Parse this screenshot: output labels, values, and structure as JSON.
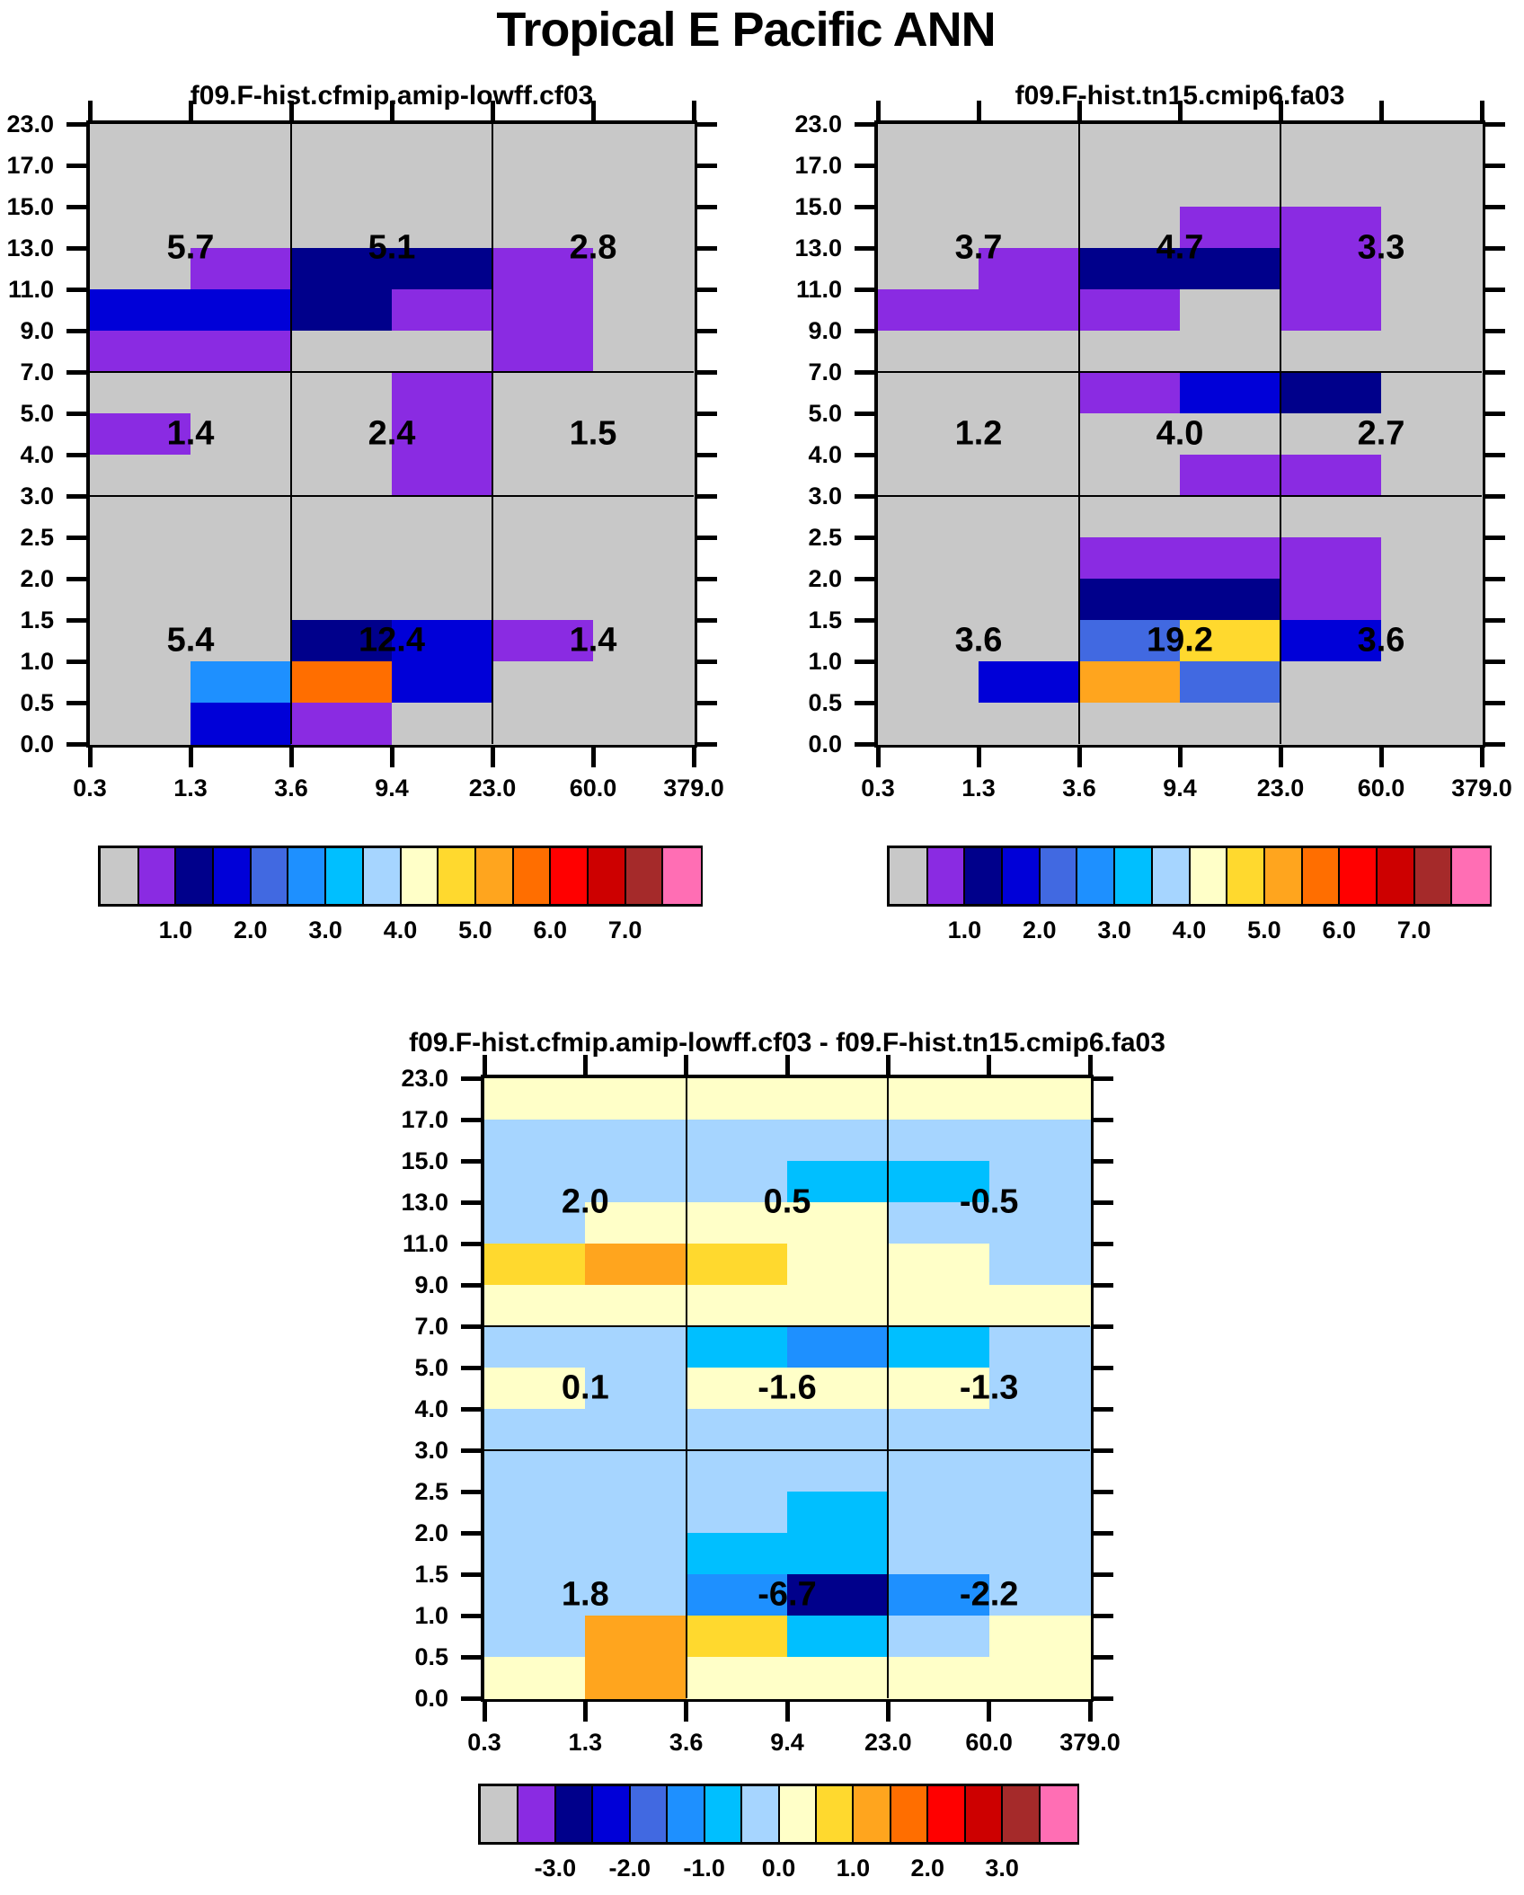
{
  "figure": {
    "title": "Tropical E Pacific ANN",
    "background": "#FFFFFF"
  },
  "palette": {
    "G": "#C8C8C8",
    "P": "#8A2BE2",
    "N": "#00008B",
    "B": "#0000D8",
    "R": "#4169E1",
    "D": "#1E90FF",
    "C": "#00BFFF",
    "L": "#A6D5FF",
    "Y": "#FFFFC8",
    "O": "#FFD92E",
    "A": "#FFA51E",
    "K": "#FF6E00"
  },
  "palette_names": {
    "G": "gray-missing",
    "P": "purple",
    "N": "navy",
    "B": "blue",
    "R": "royal-blue",
    "D": "dodger-blue",
    "C": "deep-sky-blue",
    "L": "light-blue",
    "Y": "pale-yellow",
    "O": "gold",
    "A": "orange",
    "K": "dark-orange"
  },
  "colorbar_colors": [
    "#C8C8C8",
    "#8A2BE2",
    "#00008B",
    "#0000D8",
    "#4169E1",
    "#1E90FF",
    "#00BFFF",
    "#A6D5FF",
    "#FFFFC8",
    "#FFD92E",
    "#FFA51E",
    "#FF6E00",
    "#FF0000",
    "#CD0000",
    "#A52A2A",
    "#FF6EB4"
  ],
  "chart_data": [
    {
      "type": "heatmap",
      "title": "f09.F-hist.cfmip.amip-lowff.cf03",
      "x_tick_labels": [
        "0.3",
        "1.3",
        "3.6",
        "9.4",
        "23.0",
        "60.0",
        "379.0"
      ],
      "y_tick_labels": [
        "23.0",
        "17.0",
        "15.0",
        "13.0",
        "11.0",
        "9.0",
        "7.0",
        "5.0",
        "4.0",
        "3.0",
        "2.5",
        "2.0",
        "1.5",
        "1.0",
        "0.5",
        "0.0"
      ],
      "grid": [
        "GGGGGG",
        "GGGGGG",
        "GGGGGG",
        "GPNNPG",
        "BBNPPG",
        "PPGGPG",
        "GGGPGG",
        "PGGPGG",
        "GGGPGG",
        "GGGGGG",
        "GGGGGG",
        "GGGGGG",
        "GGNBPG",
        "GDKBGG",
        "GBPGGG"
      ],
      "block_means": [
        [
          "5.7",
          "5.1",
          "2.8"
        ],
        [
          "1.4",
          "2.4",
          "1.5"
        ],
        [
          "5.4",
          "12.4",
          "1.4"
        ]
      ],
      "colorbar_labels": [
        "1.0",
        "2.0",
        "3.0",
        "4.0",
        "5.0",
        "6.0",
        "7.0"
      ]
    },
    {
      "type": "heatmap",
      "title": "f09.F-hist.tn15.cmip6.fa03",
      "x_tick_labels": [
        "0.3",
        "1.3",
        "3.6",
        "9.4",
        "23.0",
        "60.0",
        "379.0"
      ],
      "y_tick_labels": [
        "23.0",
        "17.0",
        "15.0",
        "13.0",
        "11.0",
        "9.0",
        "7.0",
        "5.0",
        "4.0",
        "3.0",
        "2.5",
        "2.0",
        "1.5",
        "1.0",
        "0.5",
        "0.0"
      ],
      "grid": [
        "GGGGGG",
        "GGGGGG",
        "GGGPPG",
        "GPNNPG",
        "PPPGPG",
        "GGGGGG",
        "GGPBNG",
        "GGGGGG",
        "GGGPPG",
        "GGGGGG",
        "GGPPPG",
        "GGNNPG",
        "GGROBG",
        "GBARGG",
        "GGGGGG"
      ],
      "block_means": [
        [
          "3.7",
          "4.7",
          "3.3"
        ],
        [
          "1.2",
          "4.0",
          "2.7"
        ],
        [
          "3.6",
          "19.2",
          "3.6"
        ]
      ],
      "colorbar_labels": [
        "1.0",
        "2.0",
        "3.0",
        "4.0",
        "5.0",
        "6.0",
        "7.0"
      ]
    },
    {
      "type": "heatmap",
      "title": "f09.F-hist.cfmip.amip-lowff.cf03 - f09.F-hist.tn15.cmip6.fa03",
      "x_tick_labels": [
        "0.3",
        "1.3",
        "3.6",
        "9.4",
        "23.0",
        "60.0",
        "379.0"
      ],
      "y_tick_labels": [
        "23.0",
        "17.0",
        "15.0",
        "13.0",
        "11.0",
        "9.0",
        "7.0",
        "5.0",
        "4.0",
        "3.0",
        "2.5",
        "2.0",
        "1.5",
        "1.0",
        "0.5",
        "0.0"
      ],
      "grid": [
        "YYYYYY",
        "LLLLLL",
        "LLLCCL",
        "LYYYLL",
        "OAOYYL",
        "YYYYYY",
        "LLCDCL",
        "YLYYYL",
        "LLLLLL",
        "LLLLLL",
        "LLLCLL",
        "LLCCLL",
        "LLDNDL",
        "LAOCLY",
        "YAYYYY"
      ],
      "block_means": [
        [
          "2.0",
          "0.5",
          "-0.5"
        ],
        [
          "0.1",
          "-1.6",
          "-1.3"
        ],
        [
          "1.8",
          "-6.7",
          "-2.2"
        ]
      ],
      "colorbar_labels": [
        "-3.0",
        "-2.0",
        "-1.0",
        "0.0",
        "1.0",
        "2.0",
        "3.0"
      ]
    }
  ]
}
